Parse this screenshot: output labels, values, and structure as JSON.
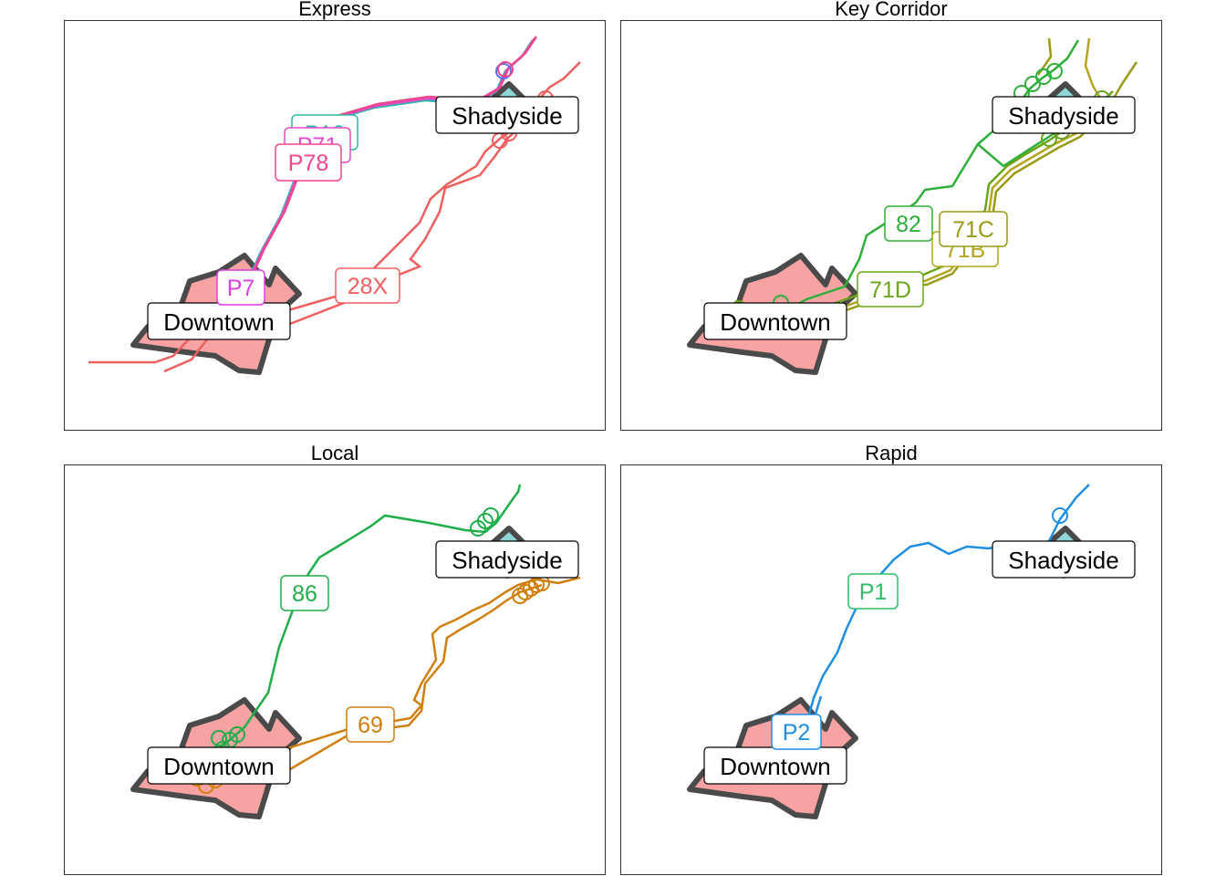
{
  "colors": {
    "downtown_fill": "#F8A3A3",
    "shadyside_fill": "#8FD6D6",
    "boundary": "#4a4a4a"
  },
  "panels": [
    {
      "title": "Express",
      "neighborhoods": [
        "Downtown",
        "Shadyside"
      ],
      "routes": [
        {
          "label": "28X",
          "color": "#EF5F5F"
        },
        {
          "label": "P10",
          "color": "#2EB8A6"
        },
        {
          "label": "P71",
          "color": "#E14ACB"
        },
        {
          "label": "P78",
          "color": "#F0458F"
        },
        {
          "label": "P7",
          "color": "#D93FE0"
        }
      ]
    },
    {
      "title": "Key Corridor",
      "neighborhoods": [
        "Downtown",
        "Shadyside"
      ],
      "routes": [
        {
          "label": "82",
          "color": "#2EAF3A"
        },
        {
          "label": "71C",
          "color": "#9A9A14"
        },
        {
          "label": "71B",
          "color": "#B3A51E"
        },
        {
          "label": "71D",
          "color": "#6AA51A"
        }
      ]
    },
    {
      "title": "Local",
      "neighborhoods": [
        "Downtown",
        "Shadyside"
      ],
      "routes": [
        {
          "label": "86",
          "color": "#1FAE4A"
        },
        {
          "label": "69",
          "color": "#D07E0C"
        }
      ]
    },
    {
      "title": "Rapid",
      "neighborhoods": [
        "Downtown",
        "Shadyside"
      ],
      "routes": [
        {
          "label": "P1",
          "color": "#2EBE6A"
        },
        {
          "label": "P2",
          "color": "#1E8FE0"
        }
      ]
    }
  ]
}
